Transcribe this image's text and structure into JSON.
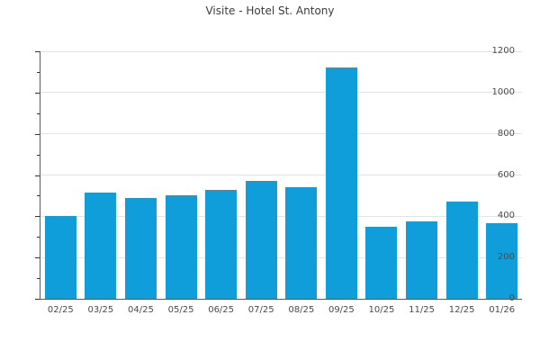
{
  "title": "Visite - Hotel St. Antony",
  "chart_data": {
    "type": "bar",
    "title": "Visite - Hotel St. Antony",
    "categories": [
      "02/25",
      "03/25",
      "04/25",
      "05/25",
      "06/25",
      "07/25",
      "08/25",
      "09/25",
      "10/25",
      "11/25",
      "12/25",
      "01/26"
    ],
    "values": [
      400,
      515,
      490,
      500,
      530,
      570,
      540,
      1120,
      350,
      375,
      470,
      365
    ],
    "xlabel": "",
    "ylabel": "",
    "ylim": [
      0,
      1200
    ],
    "yticks": [
      0,
      200,
      400,
      600,
      800,
      1000,
      1200
    ],
    "minor_tick_interval": 100,
    "grid": true,
    "legend_position": "none",
    "colors": {
      "bar": "#0f9ed9",
      "grid": "#e3e3e3",
      "axis": "#595959",
      "tick": "#333333",
      "tick_label": "#4a4a4a",
      "title": "#3c3c3c"
    }
  }
}
